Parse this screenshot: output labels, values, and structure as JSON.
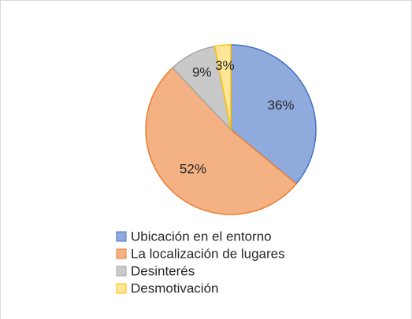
{
  "chart_data": {
    "type": "pie",
    "categories": [
      "Ubicación en el entorno",
      "La localización de lugares",
      "Desinterés",
      "Desmotivación"
    ],
    "values": [
      36,
      52,
      9,
      3
    ],
    "value_labels": [
      "36%",
      "52%",
      "9%",
      "3%"
    ],
    "colors": [
      "#8faadc",
      "#f4b183",
      "#c9c9c9",
      "#ffe699"
    ],
    "edge_colors": [
      "#4472c4",
      "#ed7d31",
      "#a5a5a5",
      "#ffc000"
    ],
    "legend": "bottom"
  }
}
